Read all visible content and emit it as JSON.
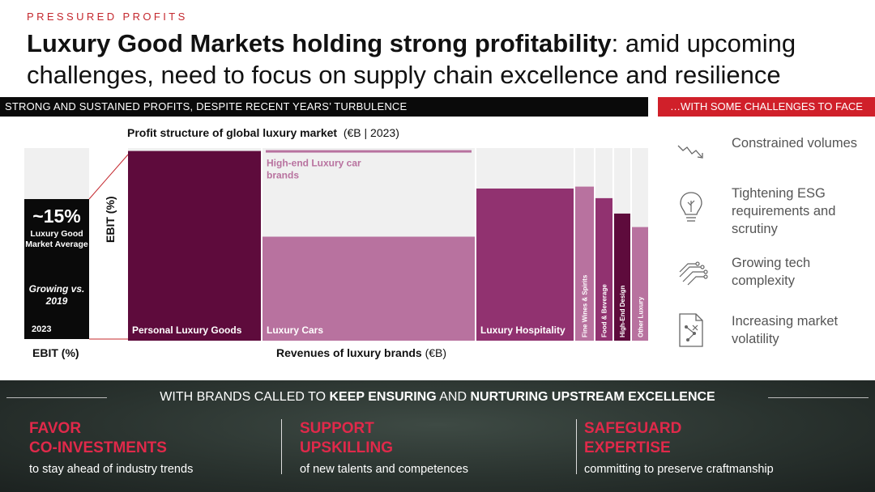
{
  "header": {
    "eyebrow": "PRESSURED PROFITS",
    "title_bold": "Luxury Good Markets holding strong profitability",
    "title_rest": ": amid upcoming challenges, need to focus on supply chain excellence and resilience"
  },
  "bands": {
    "left": "STRONG AND SUSTAINED PROFITS, DESPITE RECENT YEARS’ TURBULENCE",
    "right": "…WITH SOME CHALLENGES TO FACE"
  },
  "ebit_panel": {
    "value": "~15%",
    "label": "Luxury Good Market Average",
    "growth": "Growing vs. 2019",
    "year": "2023",
    "x_label": "EBIT (%)"
  },
  "chart_title": {
    "bold": "Profit structure of global luxury market",
    "rest": "(€B | 2023)"
  },
  "chart_data": {
    "type": "bar",
    "ylabel": "EBIT (%)",
    "xlabel_bold": "Revenues of luxury brands",
    "xlabel_unit": "(€B)",
    "segments": [
      {
        "name": "Personal Luxury Goods",
        "width": 164,
        "ebit_share": 0.985,
        "color": "#5e0b3c"
      },
      {
        "name": "Luxury Cars",
        "width": 262,
        "ebit_share": 0.54,
        "color": "#b8729f"
      },
      {
        "name": "Luxury Hospitality",
        "width": 120,
        "ebit_share": 0.79,
        "color": "#913270"
      },
      {
        "name": "Fine Wines & Spirits",
        "width": 23,
        "ebit_share": 0.8,
        "color": "#b8729f"
      },
      {
        "name": "Food & Beverage",
        "width": 21,
        "ebit_share": 0.74,
        "color": "#913270"
      },
      {
        "name": "High-End Design",
        "width": 20,
        "ebit_share": 0.66,
        "color": "#5e0b3c"
      },
      {
        "name": "Other Luxury",
        "width": 21,
        "ebit_share": 0.59,
        "color": "#b8729f"
      }
    ],
    "annotation": {
      "text": "High-end Luxury car brands",
      "segment": "Luxury Cars",
      "ebit_share": 0.985,
      "color": "#b8729f"
    }
  },
  "challenges": [
    {
      "icon": "declining-trend-icon",
      "text": "Constrained volumes"
    },
    {
      "icon": "lightbulb-leaf-icon",
      "text": "Tightening ESG requirements and scrutiny"
    },
    {
      "icon": "circuit-icon",
      "text": "Growing tech complexity"
    },
    {
      "icon": "document-network-icon",
      "text": "Increasing market volatility"
    }
  ],
  "footer": {
    "head_1": "WITH BRANDS CALLED TO ",
    "head_2": "KEEP ENSURING",
    "head_3": " AND ",
    "head_4": "NURTURING UPSTREAM EXCELLENCE",
    "pillars": [
      {
        "title_1": "FAVOR",
        "title_2": "CO-INVESTMENTS",
        "sub": "to stay ahead of industry trends"
      },
      {
        "title_1": "SUPPORT",
        "title_2": "UPSKILLING",
        "sub": "of new talents and competences"
      },
      {
        "title_1": "SAFEGUARD",
        "title_2": "EXPERTISE",
        "sub": "committing to preserve craftmanship"
      }
    ]
  },
  "colors": {
    "accent_red": "#d0202a",
    "pillar_pink": "#e0294a",
    "plum_dark": "#5e0b3c",
    "plum_mid": "#913270",
    "plum_light": "#b8729f"
  }
}
